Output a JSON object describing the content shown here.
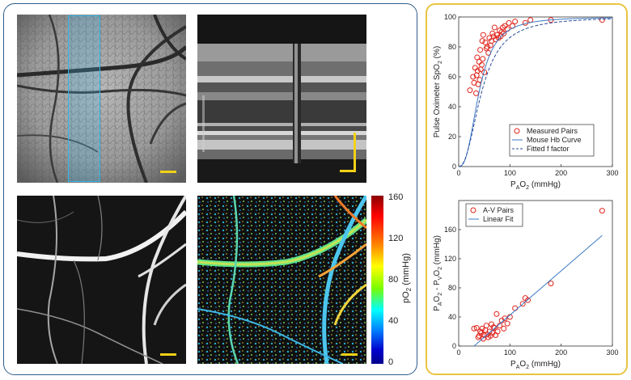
{
  "chart_data": [
    {
      "type": "scatter",
      "xlim": [
        0,
        300
      ],
      "ylim": [
        0,
        100
      ],
      "xticks": [
        0,
        100,
        200,
        300
      ],
      "yticks": [
        0,
        20,
        40,
        60,
        80,
        100
      ],
      "xlabel_main": "P",
      "xlabel_sub": "A",
      "xlabel_mid": "O",
      "xlabel_sub2": "2",
      "xlabel_unit": " (mmHg)",
      "ylabel": "Pulse Oximeter SpO",
      "ylabel_sub": "2",
      "ylabel_unit": " (%)",
      "legend_position": "bottom-right",
      "series": [
        {
          "name": "Measured Pairs",
          "kind": "markers",
          "color": "#e0241c",
          "points": [
            [
              22,
              51
            ],
            [
              28,
              60
            ],
            [
              30,
              56
            ],
            [
              32,
              66
            ],
            [
              34,
              49
            ],
            [
              35,
              61
            ],
            [
              36,
              73
            ],
            [
              37,
              64
            ],
            [
              38,
              55
            ],
            [
              40,
              70
            ],
            [
              41,
              58
            ],
            [
              42,
              78
            ],
            [
              43,
              65
            ],
            [
              45,
              68
            ],
            [
              46,
              84
            ],
            [
              47,
              72
            ],
            [
              48,
              88
            ],
            [
              50,
              63
            ],
            [
              52,
              83
            ],
            [
              54,
              79
            ],
            [
              56,
              80
            ],
            [
              58,
              76
            ],
            [
              60,
              86
            ],
            [
              62,
              81
            ],
            [
              64,
              84
            ],
            [
              66,
              89
            ],
            [
              68,
              87
            ],
            [
              70,
              93
            ],
            [
              72,
              85
            ],
            [
              75,
              88
            ],
            [
              78,
              86
            ],
            [
              80,
              91
            ],
            [
              82,
              87
            ],
            [
              84,
              90
            ],
            [
              86,
              93
            ],
            [
              88,
              89
            ],
            [
              90,
              94
            ],
            [
              95,
              92
            ],
            [
              98,
              96
            ],
            [
              105,
              94
            ],
            [
              110,
              97
            ],
            [
              130,
              96
            ],
            [
              140,
              98
            ],
            [
              180,
              98
            ],
            [
              280,
              98
            ]
          ]
        },
        {
          "name": "Mouse Hb Curve",
          "kind": "line",
          "color": "#3b78c4",
          "p50": 40,
          "n": 2.6
        },
        {
          "name": "Fitted f factor",
          "kind": "dashed",
          "color": "#2b4e9c",
          "p50": 45,
          "n": 2.3
        }
      ]
    },
    {
      "type": "scatter",
      "xlim": [
        0,
        300
      ],
      "ylim": [
        0,
        200
      ],
      "xticks": [
        0,
        100,
        200,
        300
      ],
      "yticks": [
        0,
        40,
        80,
        120,
        160
      ],
      "xlabel_main": "P",
      "xlabel_sub": "A",
      "xlabel_mid": "O",
      "xlabel_sub2": "2",
      "xlabel_unit": " (mmHg)",
      "ylabel_parts": [
        "P",
        "A",
        "O",
        "2",
        " - P",
        "V",
        "O",
        "2",
        " (mmHg)"
      ],
      "legend_position": "top-left",
      "series": [
        {
          "name": "A-V Pairs",
          "kind": "markers",
          "color": "#e0241c",
          "points": [
            [
              30,
              24
            ],
            [
              35,
              25
            ],
            [
              38,
              12
            ],
            [
              40,
              14
            ],
            [
              42,
              20
            ],
            [
              44,
              18
            ],
            [
              46,
              24
            ],
            [
              48,
              10
            ],
            [
              50,
              15
            ],
            [
              52,
              22
            ],
            [
              54,
              28
            ],
            [
              56,
              16
            ],
            [
              58,
              12
            ],
            [
              60,
              20
            ],
            [
              62,
              14
            ],
            [
              64,
              30
            ],
            [
              66,
              18
            ],
            [
              68,
              26
            ],
            [
              70,
              25
            ],
            [
              72,
              15
            ],
            [
              74,
              44
            ],
            [
              76,
              20
            ],
            [
              80,
              28
            ],
            [
              84,
              35
            ],
            [
              88,
              24
            ],
            [
              90,
              38
            ],
            [
              95,
              31
            ],
            [
              100,
              40
            ],
            [
              110,
              52
            ],
            [
              125,
              58
            ],
            [
              130,
              66
            ],
            [
              135,
              63
            ],
            [
              180,
              86
            ],
            [
              280,
              186
            ]
          ]
        },
        {
          "name": "Linear Fit",
          "kind": "line",
          "color": "#3b78c4",
          "line": [
            [
              30,
              0
            ],
            [
              280,
              152
            ]
          ]
        }
      ]
    }
  ],
  "colorbar": {
    "label": "pO",
    "label_sub": "2",
    "label_unit": " (mmHg)",
    "ticks": [
      "160",
      "120",
      "80",
      "40",
      "0"
    ]
  },
  "images": [
    {
      "name": "fundus-image",
      "description_only": true
    },
    {
      "name": "oct-bscan-image",
      "description_only": true
    },
    {
      "name": "fluorescein-angiogram-image",
      "description_only": true
    },
    {
      "name": "po2-map-image",
      "description_only": true
    }
  ]
}
